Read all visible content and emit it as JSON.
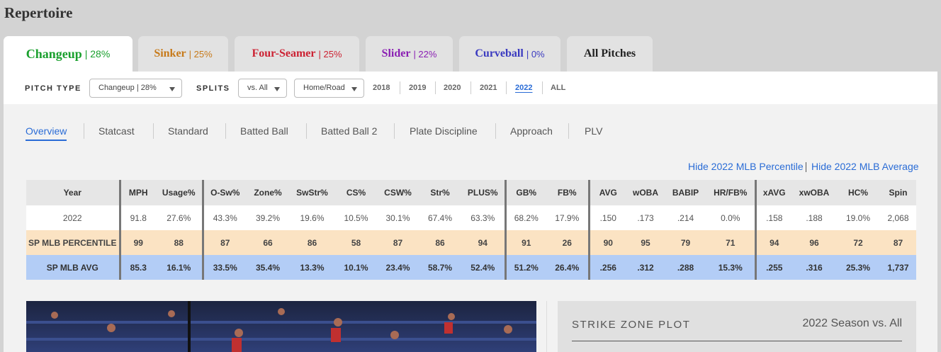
{
  "header": {
    "title": "Repertoire"
  },
  "tabs": [
    {
      "name": "Changeup",
      "pct": "| 28%"
    },
    {
      "name": "Sinker",
      "pct": "| 25%"
    },
    {
      "name": "Four-Seamer",
      "pct": "| 25%"
    },
    {
      "name": "Slider",
      "pct": "| 22%"
    },
    {
      "name": "Curveball",
      "pct": "| 0%"
    },
    {
      "name": "All Pitches"
    }
  ],
  "filters": {
    "pitch_type_label": "PITCH TYPE",
    "pitch_type_value": "Changeup | 28%",
    "splits_label": "SPLITS",
    "splits_value": "vs. All",
    "location_value": "Home/Road",
    "years": [
      "2018",
      "2019",
      "2020",
      "2021",
      "2022",
      "ALL"
    ]
  },
  "subtabs": [
    "Overview",
    "Statcast",
    "Standard",
    "Batted Ball",
    "Batted Ball 2",
    "Plate Discipline",
    "Approach",
    "PLV"
  ],
  "links": [
    "Hide 2022 MLB Percentile",
    "Hide 2022 MLB Average"
  ],
  "table": {
    "columns": [
      "Year",
      "MPH",
      "Usage%",
      "O-Sw%",
      "Zone%",
      "SwStr%",
      "CS%",
      "CSW%",
      "Str%",
      "PLUS%",
      "GB%",
      "FB%",
      "AVG",
      "wOBA",
      "BABIP",
      "HR/FB%",
      "xAVG",
      "xwOBA",
      "HC%",
      "Spin"
    ],
    "rows": [
      [
        "2022",
        "91.8",
        "27.6%",
        "43.3%",
        "39.2%",
        "19.6%",
        "10.5%",
        "30.1%",
        "67.4%",
        "63.3%",
        "68.2%",
        "17.9%",
        ".150",
        ".173",
        ".214",
        "0.0%",
        ".158",
        ".188",
        "19.0%",
        "2,068"
      ],
      [
        "SP MLB PERCENTILE",
        "99",
        "88",
        "87",
        "66",
        "86",
        "58",
        "87",
        "86",
        "94",
        "91",
        "26",
        "90",
        "95",
        "79",
        "71",
        "94",
        "96",
        "72",
        "87"
      ],
      [
        "SP MLB AVG",
        "85.3",
        "16.1%",
        "33.5%",
        "35.4%",
        "13.3%",
        "10.1%",
        "23.4%",
        "58.7%",
        "52.4%",
        "51.2%",
        "26.4%",
        ".256",
        ".312",
        ".288",
        "15.3%",
        ".255",
        ".316",
        "25.3%",
        "1,737"
      ]
    ]
  },
  "strike_zone": {
    "title": "STRIKE ZONE PLOT",
    "subtitle": "2022 Season vs. All"
  }
}
